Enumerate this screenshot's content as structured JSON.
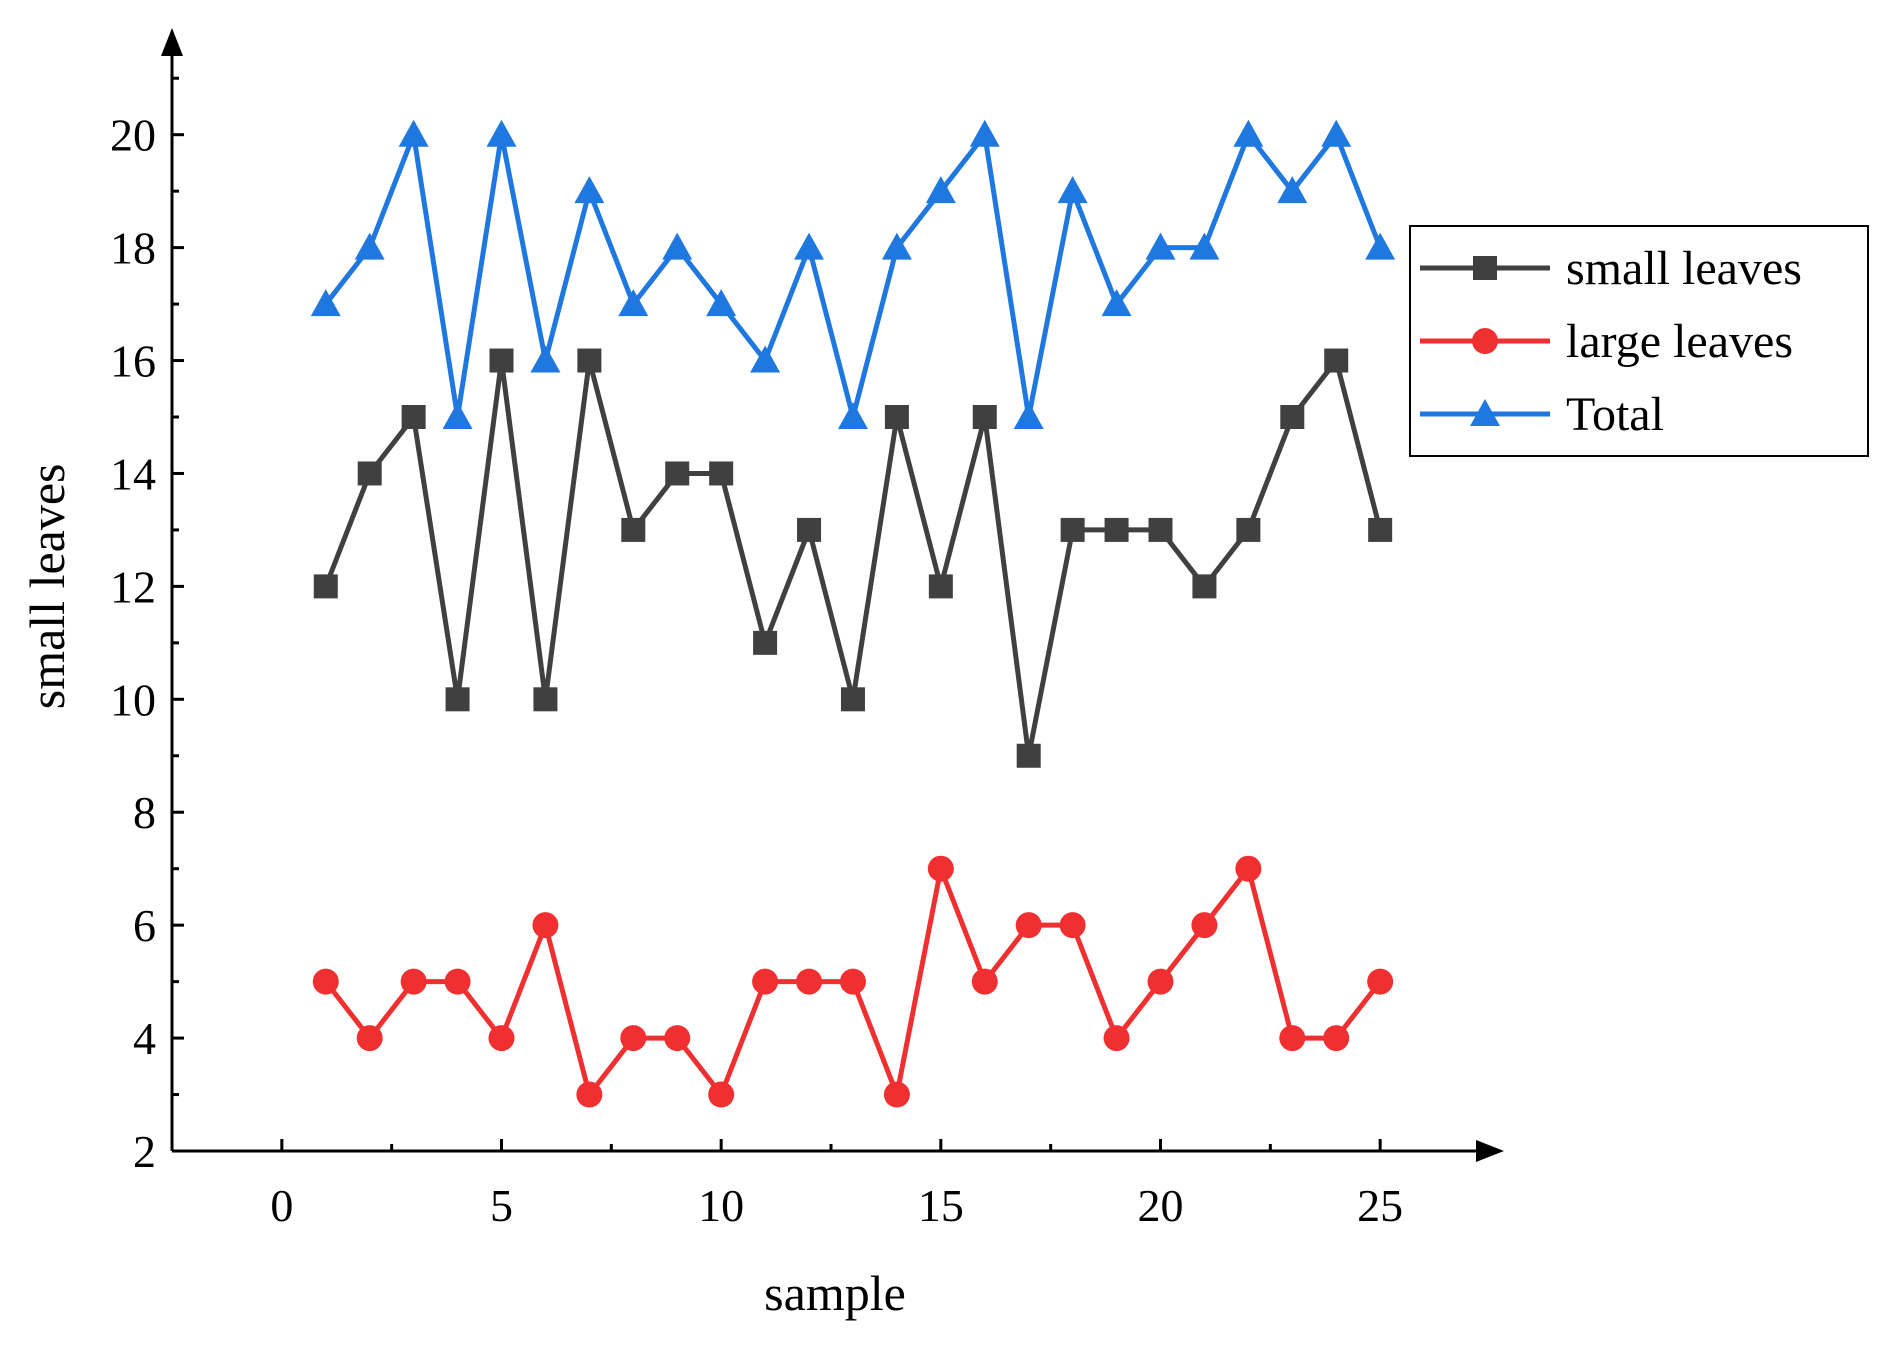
{
  "chart_data": {
    "type": "line",
    "title": "",
    "xlabel": "sample",
    "ylabel": "small leaves",
    "xlim": [
      -2.5,
      27.5
    ],
    "ylim": [
      2,
      21.5
    ],
    "x_ticks": [
      0,
      5,
      10,
      15,
      20,
      25
    ],
    "x_tick_labels": [
      "0",
      "5",
      "10",
      "15",
      "20",
      "25"
    ],
    "y_ticks": [
      2,
      4,
      6,
      8,
      10,
      12,
      14,
      16,
      18,
      20
    ],
    "y_tick_labels": [
      "2",
      "4",
      "6",
      "8",
      "10",
      "12",
      "14",
      "16",
      "18",
      "20"
    ],
    "grid": false,
    "legend_position": "right",
    "x": [
      1,
      2,
      3,
      4,
      5,
      6,
      7,
      8,
      9,
      10,
      11,
      12,
      13,
      14,
      15,
      16,
      17,
      18,
      19,
      20,
      21,
      22,
      23,
      24,
      25
    ],
    "series": [
      {
        "name": "small leaves",
        "color": "#404040",
        "marker": "square",
        "values": [
          12,
          14,
          15,
          10,
          16,
          10,
          16,
          13,
          14,
          14,
          11,
          13,
          10,
          15,
          12,
          15,
          9,
          13,
          13,
          13,
          12,
          13,
          15,
          16,
          13
        ]
      },
      {
        "name": "large leaves",
        "color": "#f03030",
        "marker": "circle",
        "values": [
          5,
          4,
          5,
          5,
          4,
          6,
          3,
          4,
          4,
          3,
          5,
          5,
          5,
          3,
          7,
          5,
          6,
          6,
          4,
          5,
          6,
          7,
          4,
          4,
          5
        ]
      },
      {
        "name": "Total",
        "color": "#1f78e0",
        "marker": "triangle",
        "values": [
          17,
          18,
          20,
          15,
          20,
          16,
          19,
          17,
          18,
          17,
          16,
          18,
          15,
          18,
          19,
          20,
          15,
          19,
          17,
          18,
          18,
          20,
          19,
          20,
          18
        ]
      }
    ]
  }
}
